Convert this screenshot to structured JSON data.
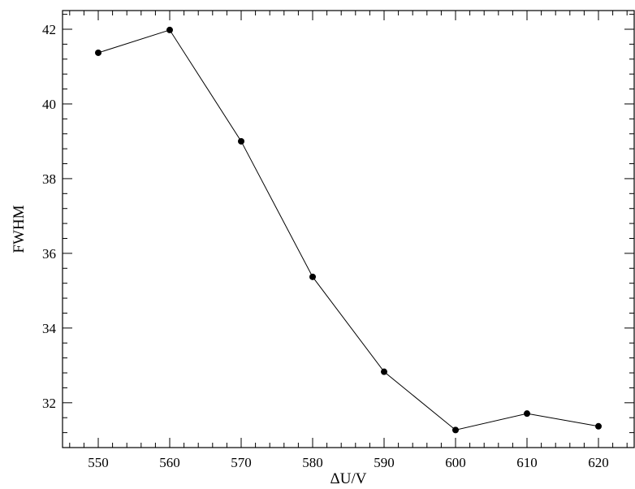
{
  "chart_data": {
    "type": "line",
    "title": "",
    "xlabel": "ΔU/V",
    "ylabel": "FWHM",
    "xlim": [
      545,
      625
    ],
    "ylim": [
      30.8,
      42.5
    ],
    "x_ticks": [
      550,
      560,
      570,
      580,
      590,
      600,
      610,
      620
    ],
    "y_ticks": [
      32,
      34,
      36,
      38,
      40,
      42
    ],
    "grid": false,
    "legend": "none",
    "series": [
      {
        "x": [
          550,
          560,
          570,
          580,
          590,
          600,
          610,
          620
        ],
        "y": [
          41.37,
          41.98,
          39.0,
          35.37,
          32.83,
          31.27,
          31.71,
          31.37
        ]
      }
    ]
  }
}
